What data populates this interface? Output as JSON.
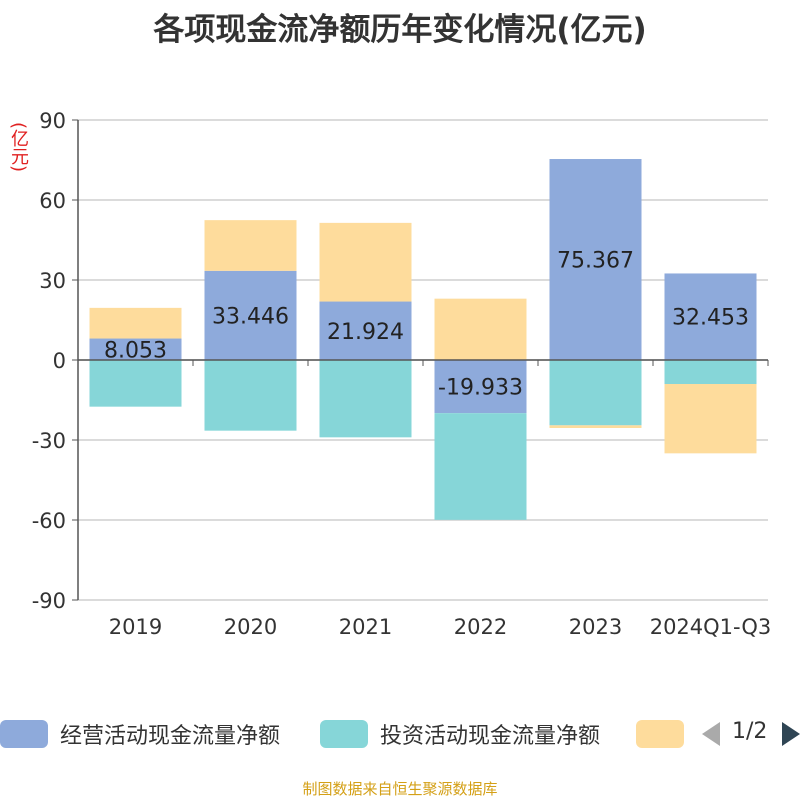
{
  "title": "各项现金流净额历年变化情况(亿元)",
  "y_unit_label": "(亿元)",
  "source": "制图数据来自恒生聚源数据库",
  "legend": {
    "items": [
      {
        "label": "经营活动现金流量净额",
        "color": "#8eaadb"
      },
      {
        "label": "投资活动现金流量净额",
        "color": "#86d6d8"
      },
      {
        "label": "",
        "color": "#fedc9c"
      }
    ],
    "page_text": "1/2"
  },
  "chart_data": {
    "type": "bar",
    "stacked": true,
    "title": "各项现金流净额历年变化情况(亿元)",
    "ylabel": "(亿元)",
    "ylim": [
      -90,
      90
    ],
    "yticks": [
      90,
      60,
      30,
      0,
      -30,
      -60,
      -90
    ],
    "grid": true,
    "legend_position": "bottom",
    "categories": [
      "2019",
      "2020",
      "2021",
      "2022",
      "2023",
      "2024Q1-Q3"
    ],
    "series": [
      {
        "name": "经营活动现金流量净额",
        "color": "#8eaadb",
        "values": [
          8.053,
          33.446,
          21.924,
          -19.933,
          75.367,
          32.453
        ]
      },
      {
        "name": "投资活动现金流量净额",
        "color": "#86d6d8",
        "values": [
          -17.5,
          -26.5,
          -29.0,
          -40.0,
          -24.5,
          -9.0
        ]
      },
      {
        "name": "",
        "color": "#fedc9c",
        "values": [
          11.5,
          19.0,
          29.5,
          23.0,
          -1.0,
          -26.0
        ]
      }
    ],
    "data_labels": [
      "8.053",
      "33.446",
      "21.924",
      "-19.933",
      "75.367",
      "32.453"
    ]
  }
}
